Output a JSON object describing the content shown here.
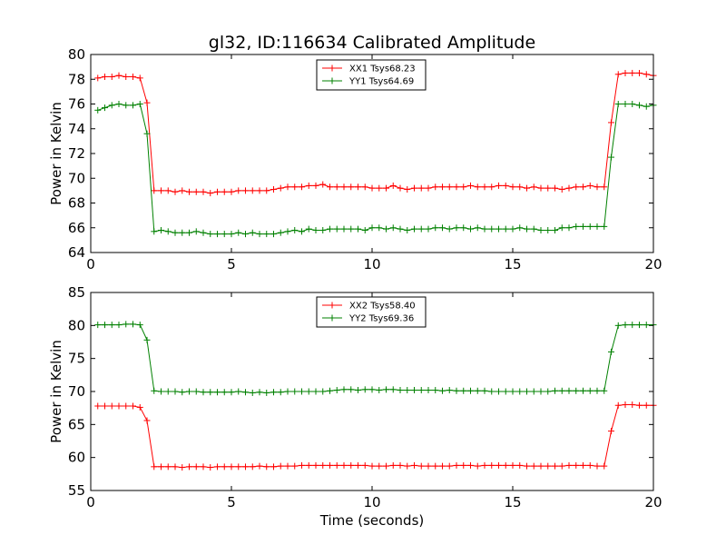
{
  "figure": {
    "title": "gl32, ID:116634 Calibrated Amplitude",
    "xlabel": "Time (seconds)"
  },
  "chart_data": [
    {
      "type": "line",
      "title": "gl32, ID:116634 Calibrated Amplitude",
      "xlabel": "",
      "ylabel": "Power in Kelvin",
      "xlim": [
        0,
        20
      ],
      "ylim": [
        64,
        80
      ],
      "xticks": [
        0,
        5,
        10,
        15,
        20
      ],
      "yticks": [
        64,
        66,
        68,
        70,
        72,
        74,
        76,
        78,
        80
      ],
      "grid": false,
      "legend_position": "top-center",
      "x": [
        0.25,
        0.5,
        0.75,
        1.0,
        1.25,
        1.5,
        1.75,
        2.0,
        2.25,
        2.5,
        2.75,
        3.0,
        3.25,
        3.5,
        3.75,
        4.0,
        4.25,
        4.5,
        4.75,
        5.0,
        5.25,
        5.5,
        5.75,
        6.0,
        6.25,
        6.5,
        6.75,
        7.0,
        7.25,
        7.5,
        7.75,
        8.0,
        8.25,
        8.5,
        8.75,
        9.0,
        9.25,
        9.5,
        9.75,
        10.0,
        10.25,
        10.5,
        10.75,
        11.0,
        11.25,
        11.5,
        11.75,
        12.0,
        12.25,
        12.5,
        12.75,
        13.0,
        13.25,
        13.5,
        13.75,
        14.0,
        14.25,
        14.5,
        14.75,
        15.0,
        15.25,
        15.5,
        15.75,
        16.0,
        16.25,
        16.5,
        16.75,
        17.0,
        17.25,
        17.5,
        17.75,
        18.0,
        18.25,
        18.5,
        18.75,
        19.0,
        19.25,
        19.5,
        19.75,
        20.0
      ],
      "series": [
        {
          "name": "XX1 Tsys68.23",
          "color": "#ff0000",
          "values": [
            78.1,
            78.2,
            78.2,
            78.3,
            78.2,
            78.2,
            78.1,
            76.1,
            69.0,
            69.0,
            69.0,
            68.9,
            69.0,
            68.9,
            68.9,
            68.9,
            68.8,
            68.9,
            68.9,
            68.9,
            69.0,
            69.0,
            69.0,
            69.0,
            69.0,
            69.1,
            69.2,
            69.3,
            69.3,
            69.3,
            69.4,
            69.4,
            69.5,
            69.3,
            69.3,
            69.3,
            69.3,
            69.3,
            69.3,
            69.2,
            69.2,
            69.2,
            69.4,
            69.2,
            69.1,
            69.2,
            69.2,
            69.2,
            69.3,
            69.3,
            69.3,
            69.3,
            69.3,
            69.4,
            69.3,
            69.3,
            69.3,
            69.4,
            69.4,
            69.3,
            69.3,
            69.2,
            69.3,
            69.2,
            69.2,
            69.2,
            69.1,
            69.2,
            69.3,
            69.3,
            69.4,
            69.3,
            69.3,
            74.5,
            78.4,
            78.5,
            78.5,
            78.5,
            78.4,
            78.3
          ]
        },
        {
          "name": "YY1 Tsys64.69",
          "color": "#008000",
          "values": [
            75.5,
            75.7,
            75.9,
            76.0,
            75.9,
            75.9,
            76.0,
            73.6,
            65.7,
            65.8,
            65.7,
            65.6,
            65.6,
            65.6,
            65.7,
            65.6,
            65.5,
            65.5,
            65.5,
            65.5,
            65.6,
            65.5,
            65.6,
            65.5,
            65.5,
            65.5,
            65.6,
            65.7,
            65.8,
            65.7,
            65.9,
            65.8,
            65.8,
            65.9,
            65.9,
            65.9,
            65.9,
            65.9,
            65.8,
            66.0,
            66.0,
            65.9,
            66.0,
            65.9,
            65.8,
            65.9,
            65.9,
            65.9,
            66.0,
            66.0,
            65.9,
            66.0,
            66.0,
            65.9,
            66.0,
            65.9,
            65.9,
            65.9,
            65.9,
            65.9,
            66.0,
            65.9,
            65.9,
            65.8,
            65.8,
            65.8,
            66.0,
            66.0,
            66.1,
            66.1,
            66.1,
            66.1,
            66.1,
            71.7,
            76.0,
            76.0,
            76.0,
            75.9,
            75.8,
            75.9
          ]
        }
      ]
    },
    {
      "type": "line",
      "title": "",
      "xlabel": "Time (seconds)",
      "ylabel": "Power in Kelvin",
      "xlim": [
        0,
        20
      ],
      "ylim": [
        55,
        85
      ],
      "xticks": [
        0,
        5,
        10,
        15,
        20
      ],
      "yticks": [
        55,
        60,
        65,
        70,
        75,
        80,
        85
      ],
      "grid": false,
      "legend_position": "top-center",
      "x": [
        0.25,
        0.5,
        0.75,
        1.0,
        1.25,
        1.5,
        1.75,
        2.0,
        2.25,
        2.5,
        2.75,
        3.0,
        3.25,
        3.5,
        3.75,
        4.0,
        4.25,
        4.5,
        4.75,
        5.0,
        5.25,
        5.5,
        5.75,
        6.0,
        6.25,
        6.5,
        6.75,
        7.0,
        7.25,
        7.5,
        7.75,
        8.0,
        8.25,
        8.5,
        8.75,
        9.0,
        9.25,
        9.5,
        9.75,
        10.0,
        10.25,
        10.5,
        10.75,
        11.0,
        11.25,
        11.5,
        11.75,
        12.0,
        12.25,
        12.5,
        12.75,
        13.0,
        13.25,
        13.5,
        13.75,
        14.0,
        14.25,
        14.5,
        14.75,
        15.0,
        15.25,
        15.5,
        15.75,
        16.0,
        16.25,
        16.5,
        16.75,
        17.0,
        17.25,
        17.5,
        17.75,
        18.0,
        18.25,
        18.5,
        18.75,
        19.0,
        19.25,
        19.5,
        19.75,
        20.0
      ],
      "series": [
        {
          "name": "XX2 Tsys58.40",
          "color": "#ff0000",
          "values": [
            67.8,
            67.8,
            67.8,
            67.8,
            67.8,
            67.8,
            67.6,
            65.6,
            58.6,
            58.6,
            58.6,
            58.6,
            58.5,
            58.6,
            58.6,
            58.6,
            58.5,
            58.6,
            58.6,
            58.6,
            58.6,
            58.6,
            58.6,
            58.7,
            58.6,
            58.6,
            58.7,
            58.7,
            58.7,
            58.8,
            58.8,
            58.8,
            58.8,
            58.8,
            58.8,
            58.8,
            58.8,
            58.8,
            58.8,
            58.7,
            58.7,
            58.7,
            58.8,
            58.8,
            58.7,
            58.8,
            58.7,
            58.7,
            58.7,
            58.7,
            58.7,
            58.8,
            58.8,
            58.8,
            58.7,
            58.8,
            58.8,
            58.8,
            58.8,
            58.8,
            58.8,
            58.7,
            58.7,
            58.7,
            58.7,
            58.7,
            58.7,
            58.8,
            58.8,
            58.8,
            58.8,
            58.7,
            58.7,
            64.0,
            67.9,
            68.0,
            68.0,
            67.9,
            67.9,
            67.9
          ]
        },
        {
          "name": "YY2 Tsys69.36",
          "color": "#008000",
          "values": [
            80.1,
            80.1,
            80.1,
            80.1,
            80.2,
            80.2,
            80.1,
            77.8,
            70.1,
            70.0,
            70.0,
            70.0,
            69.9,
            70.0,
            70.0,
            69.9,
            69.9,
            69.9,
            69.9,
            69.9,
            70.0,
            69.9,
            69.8,
            69.9,
            69.8,
            69.9,
            69.9,
            70.0,
            70.0,
            70.0,
            70.0,
            70.0,
            70.0,
            70.1,
            70.2,
            70.3,
            70.3,
            70.2,
            70.3,
            70.3,
            70.2,
            70.3,
            70.3,
            70.2,
            70.2,
            70.2,
            70.2,
            70.2,
            70.2,
            70.1,
            70.2,
            70.1,
            70.1,
            70.1,
            70.1,
            70.1,
            70.0,
            70.0,
            70.0,
            70.0,
            70.0,
            70.0,
            70.0,
            70.0,
            70.0,
            70.1,
            70.1,
            70.1,
            70.1,
            70.1,
            70.1,
            70.1,
            70.1,
            76.0,
            80.0,
            80.1,
            80.1,
            80.1,
            80.1,
            80.1
          ]
        }
      ]
    }
  ]
}
